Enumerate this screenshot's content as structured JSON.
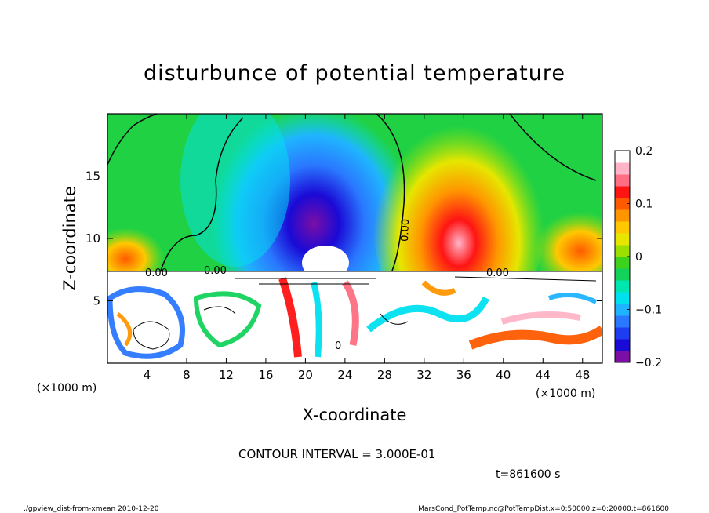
{
  "chart_data": {
    "type": "heatmap",
    "title": "disturbunce of potential temperature",
    "xlabel": "X-coordinate",
    "ylabel": "Z-coordinate",
    "x_unit": "(×1000 m)",
    "y_unit": "(×1000 m)",
    "xlim": [
      0,
      50
    ],
    "ylim": [
      0,
      20
    ],
    "x_ticks": [
      4,
      8,
      12,
      16,
      20,
      24,
      28,
      32,
      36,
      40,
      44,
      48
    ],
    "y_ticks": [
      5,
      10,
      15
    ],
    "colorbar": {
      "range": [
        -0.2,
        0.2
      ],
      "ticks": [
        0.2,
        0.1,
        0,
        -0.1,
        -0.2
      ],
      "tick_labels": [
        "0.2",
        "0.1",
        "0",
        "−0.1",
        "−0.2"
      ],
      "colors": [
        "#7b0ea5",
        "#1a0ad6",
        "#1e3cf0",
        "#2a78ff",
        "#1fb4ff",
        "#00e1f0",
        "#00e6b0",
        "#12d25a",
        "#3cd21e",
        "#9be000",
        "#e6e600",
        "#ffc800",
        "#ff9600",
        "#ff5a00",
        "#ff1414",
        "#ff6e82",
        "#ffb4c8",
        "#ffffff"
      ]
    },
    "contour_labels": [
      "0.00",
      "0.00",
      "0.00",
      "0.00",
      "0"
    ],
    "contour_interval": "CONTOUR INTERVAL = 3.000E-01",
    "time": "t=861600 s"
  },
  "footer": {
    "left": "./gpview_dist-from-xmean 2010-12-20",
    "right": "MarsCond_PotTemp.nc@PotTempDist,x=0:50000,z=0:20000,t=861600"
  }
}
